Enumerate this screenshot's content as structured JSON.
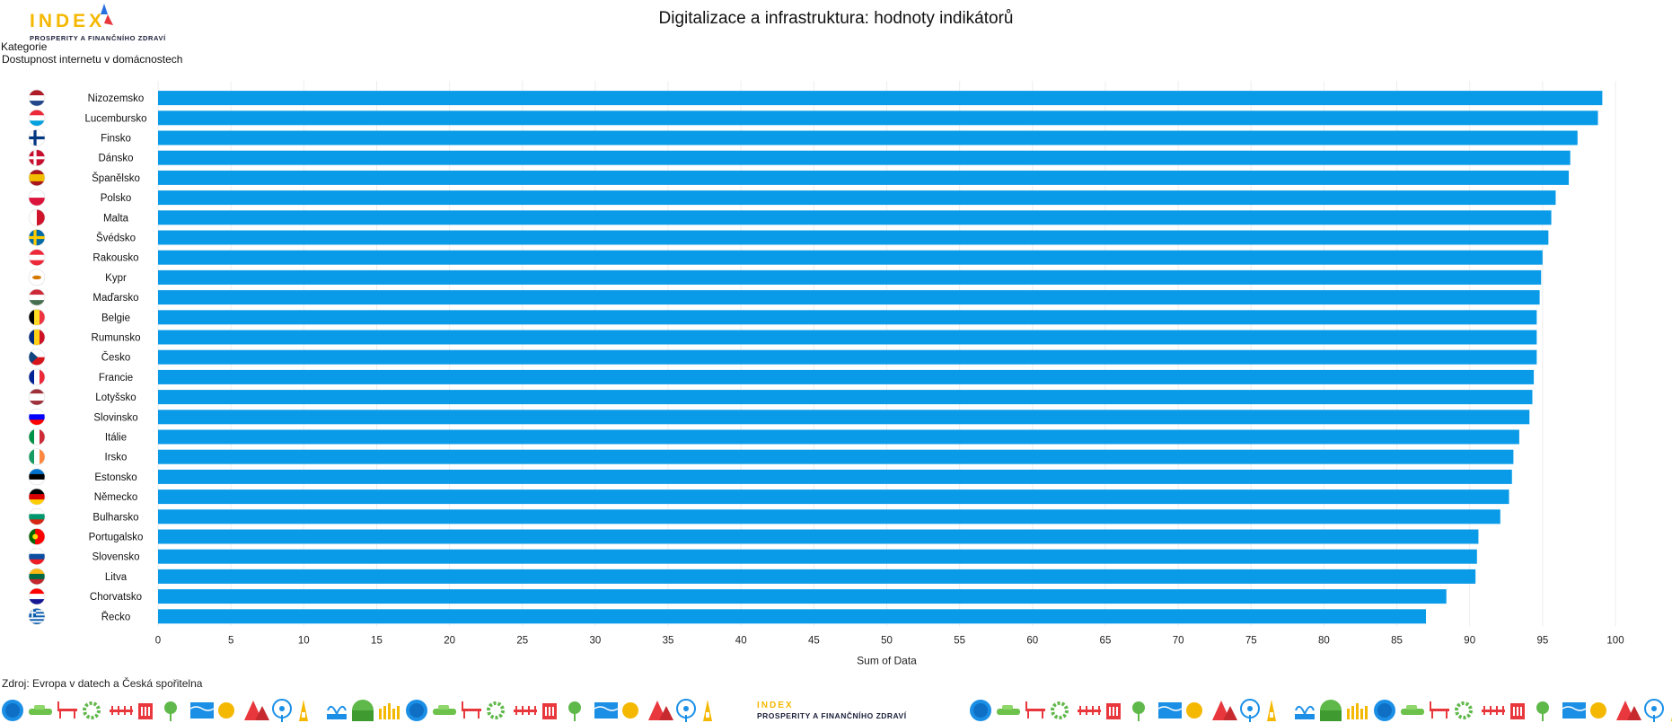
{
  "brand": {
    "logo_word": "INDEX",
    "logo_sub": "PROSPERITY A FINANČNÍHO ZDRAVÍ",
    "colors": {
      "yellow": "#f5b800",
      "navy": "#1b1f3a",
      "red": "#e8383d",
      "blue": "#2a6fe0"
    }
  },
  "header": {
    "title": "Digitalizace a infrastruktura: hodnoty indikátorů",
    "category_label": "Kategorie",
    "category_value": "Dostupnost internetu v domácnostech"
  },
  "source": "Zdroj: Evropa v datech a Česká spořitelna",
  "footer_icons": [
    "globe-icon",
    "car-icon",
    "bench-icon",
    "gear-icon",
    "rail-icon",
    "building-icon",
    "tree-icon",
    "waves-icon",
    "sun-icon",
    "mountain-icon",
    "ferris-wheel-icon",
    "tower-icon",
    "fountain-icon",
    "hill-icon",
    "field-icon"
  ],
  "chart_data": {
    "type": "bar",
    "orientation": "horizontal",
    "bar_color": "#0a9be8",
    "categories": [
      "Nizozemsko",
      "Lucembursko",
      "Finsko",
      "Dánsko",
      "Španělsko",
      "Polsko",
      "Malta",
      "Švédsko",
      "Rakousko",
      "Kypr",
      "Maďarsko",
      "Belgie",
      "Rumunsko",
      "Česko",
      "Francie",
      "Lotyšsko",
      "Slovinsko",
      "Itálie",
      "Irsko",
      "Estonsko",
      "Německo",
      "Bulharsko",
      "Portugalsko",
      "Slovensko",
      "Litva",
      "Chorvatsko",
      "Řecko"
    ],
    "flags": [
      {
        "type": "h",
        "colors": [
          "#ae1c28",
          "#ffffff",
          "#21468b"
        ]
      },
      {
        "type": "h",
        "colors": [
          "#ed2939",
          "#ffffff",
          "#00a1de"
        ]
      },
      {
        "type": "cross",
        "colors": [
          "#ffffff",
          "#003580"
        ]
      },
      {
        "type": "cross",
        "colors": [
          "#c8102e",
          "#ffffff"
        ]
      },
      {
        "type": "h3",
        "colors": [
          "#aa151b",
          "#f1bf00",
          "#aa151b"
        ]
      },
      {
        "type": "h",
        "colors": [
          "#ffffff",
          "#dc143c"
        ]
      },
      {
        "type": "v",
        "colors": [
          "#ffffff",
          "#cf142b"
        ]
      },
      {
        "type": "cross",
        "colors": [
          "#006aa7",
          "#fecc00"
        ]
      },
      {
        "type": "h",
        "colors": [
          "#ed2939",
          "#ffffff",
          "#ed2939"
        ]
      },
      {
        "type": "plain",
        "colors": [
          "#ffffff",
          "#d57800"
        ]
      },
      {
        "type": "h",
        "colors": [
          "#ce2939",
          "#ffffff",
          "#477050"
        ]
      },
      {
        "type": "v",
        "colors": [
          "#000000",
          "#fdda24",
          "#ef3340"
        ]
      },
      {
        "type": "v",
        "colors": [
          "#002b7f",
          "#fcd116",
          "#ce1126"
        ]
      },
      {
        "type": "cz",
        "colors": [
          "#ffffff",
          "#d7141a",
          "#11457e"
        ]
      },
      {
        "type": "v",
        "colors": [
          "#002395",
          "#ffffff",
          "#ed2939"
        ]
      },
      {
        "type": "h3",
        "colors": [
          "#9e3039",
          "#ffffff",
          "#9e3039"
        ]
      },
      {
        "type": "h",
        "colors": [
          "#ffffff",
          "#0000ff",
          "#ff0000"
        ]
      },
      {
        "type": "v",
        "colors": [
          "#009246",
          "#ffffff",
          "#ce2b37"
        ]
      },
      {
        "type": "v",
        "colors": [
          "#169b62",
          "#ffffff",
          "#ff883e"
        ]
      },
      {
        "type": "h",
        "colors": [
          "#0072ce",
          "#000000",
          "#ffffff"
        ]
      },
      {
        "type": "h",
        "colors": [
          "#000000",
          "#dd0000",
          "#ffce00"
        ]
      },
      {
        "type": "h",
        "colors": [
          "#ffffff",
          "#00966e",
          "#d62612"
        ]
      },
      {
        "type": "v2",
        "colors": [
          "#006600",
          "#ff0000"
        ]
      },
      {
        "type": "h",
        "colors": [
          "#ffffff",
          "#0b4ea2",
          "#ee1c25"
        ]
      },
      {
        "type": "h",
        "colors": [
          "#fdb913",
          "#006a44",
          "#c1272d"
        ]
      },
      {
        "type": "h",
        "colors": [
          "#ff0000",
          "#ffffff",
          "#171796"
        ]
      },
      {
        "type": "h9",
        "colors": [
          "#0d5eaf",
          "#ffffff"
        ]
      }
    ],
    "values": [
      99.1,
      98.8,
      97.4,
      96.9,
      96.8,
      95.9,
      95.6,
      95.4,
      95.0,
      94.9,
      94.8,
      94.6,
      94.6,
      94.6,
      94.4,
      94.3,
      94.1,
      93.4,
      93.0,
      92.9,
      92.7,
      92.1,
      90.6,
      90.5,
      90.4,
      88.4,
      87.0
    ],
    "title": "Digitalizace a infrastruktura: hodnoty indikátorů",
    "xlabel": "Sum of Data",
    "ylabel": "",
    "xlim": [
      0,
      100
    ],
    "xticks": [
      0,
      5,
      10,
      15,
      20,
      25,
      30,
      35,
      40,
      45,
      50,
      55,
      60,
      65,
      70,
      75,
      80,
      85,
      90,
      95,
      100
    ],
    "grid": true
  }
}
